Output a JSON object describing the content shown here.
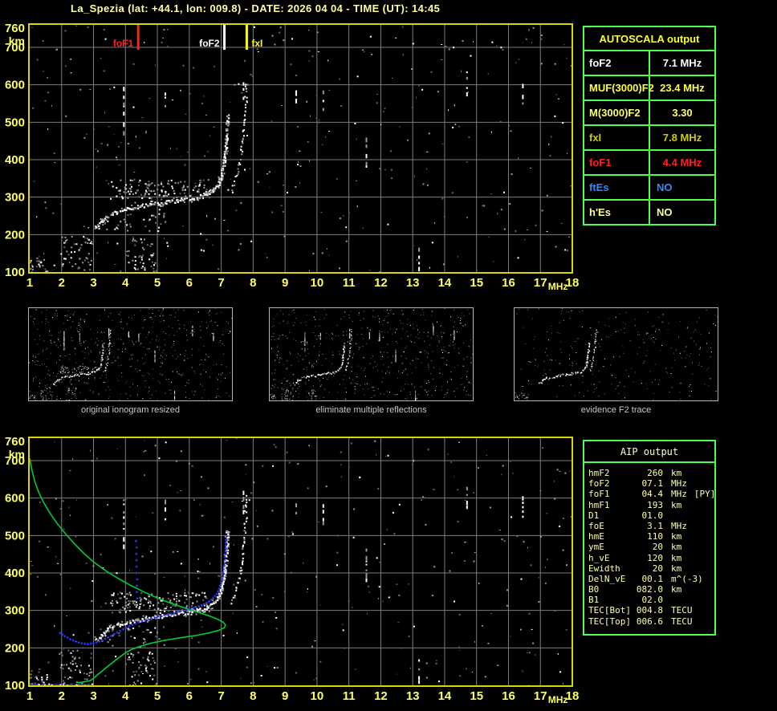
{
  "title": "La_Spezia (lat: +44.1, lon: 009.8) - DATE: 2026 04 04 - TIME (UT): 14:45",
  "colors": {
    "background": "#000000",
    "title_text": "#ffffa0",
    "axis_text": "#ffff66",
    "plot_border": "#d8d800",
    "grid": "#7d7d7d",
    "table_border": "#4dff4d",
    "echo_white": "#ffffff",
    "echo_gray": "#9a9a9a",
    "echo_dim": "#686868",
    "profile_green": "#00cc33",
    "trace_blue": "#2a3bff",
    "caption_text": "#c8c8c8",
    "aip_text": "#ffffaa"
  },
  "autoscala_table": {
    "title": "AUTOSCALA output",
    "rows": [
      {
        "label": "foF2",
        "value": "7.1 MHz",
        "color": "#ffffff"
      },
      {
        "label": "MUF(3000)F2",
        "value": "23.4 MHz",
        "color": "#ffff33"
      },
      {
        "label": "M(3000)F2",
        "value": "3.30",
        "color": "#ffff66"
      },
      {
        "label": "fxI",
        "value": "7.8 MHz",
        "color": "#cccc00"
      },
      {
        "label": "foF1",
        "value": "4.4 MHz",
        "color": "#ff2020"
      },
      {
        "label": "ftEs",
        "value": "NO",
        "color": "#3388ff"
      },
      {
        "label": "h'Es",
        "value": "NO",
        "color": "#ffff99"
      }
    ]
  },
  "thumbnails": [
    {
      "caption": "original ionogram resized"
    },
    {
      "caption": "eliminate multiple reflections"
    },
    {
      "caption": "evidence F2 trace"
    }
  ],
  "aip_table": {
    "title": "AIP output",
    "rows": [
      {
        "label": "hmF2",
        "value": "260",
        "unit": "km",
        "suffix": ""
      },
      {
        "label": "foF2",
        "value": "07.1",
        "unit": "MHz",
        "suffix": ""
      },
      {
        "label": "foF1",
        "value": "04.4",
        "unit": "MHz",
        "suffix": "[PY]"
      },
      {
        "label": "hmF1",
        "value": "193",
        "unit": "km",
        "suffix": ""
      },
      {
        "label": "D1",
        "value": "01.0",
        "unit": "",
        "suffix": ""
      },
      {
        "label": "foE",
        "value": "3.1",
        "unit": "MHz",
        "suffix": ""
      },
      {
        "label": "hmE",
        "value": "110",
        "unit": "km",
        "suffix": ""
      },
      {
        "label": "ymE",
        "value": "20",
        "unit": "km",
        "suffix": ""
      },
      {
        "label": "h_vE",
        "value": "120",
        "unit": "km",
        "suffix": ""
      },
      {
        "label": "Ewidth",
        "value": "20",
        "unit": "km",
        "suffix": ""
      },
      {
        "label": "DelN_vE",
        "value": "00.1",
        "unit": "m^(-3)",
        "suffix": ""
      },
      {
        "label": "B0",
        "value": "082.0",
        "unit": "km",
        "suffix": ""
      },
      {
        "label": "B1",
        "value": "02.0",
        "unit": "",
        "suffix": ""
      },
      {
        "label": "TEC[Bot]",
        "value": "004.8",
        "unit": "TECU",
        "suffix": ""
      },
      {
        "label": "TEC[Top]",
        "value": "006.6",
        "unit": "TECU",
        "suffix": ""
      }
    ]
  },
  "chart_data": [
    {
      "id": "top_ionogram",
      "type": "scatter",
      "title": "",
      "xlabel": "MHz",
      "ylabel": "km",
      "xlim": [
        1,
        18
      ],
      "ylim": [
        100,
        760
      ],
      "x_ticks": [
        1,
        2,
        3,
        4,
        5,
        6,
        7,
        8,
        9,
        10,
        11,
        12,
        13,
        14,
        15,
        16,
        17,
        18
      ],
      "y_ticks": [
        760,
        700,
        600,
        500,
        400,
        300,
        200,
        100
      ],
      "grid": true,
      "markers": [
        {
          "label": "foF1",
          "freq": 4.4,
          "color": "#ff2020",
          "side": "left"
        },
        {
          "label": "foF2",
          "freq": 7.1,
          "color": "#ffffff",
          "side": "left"
        },
        {
          "label": "fxI",
          "freq": 7.8,
          "color": "#ffff00",
          "side": "right"
        }
      ],
      "f2_trace": [
        [
          3.05,
          222
        ],
        [
          3.25,
          238
        ],
        [
          3.45,
          252
        ],
        [
          3.7,
          261
        ],
        [
          3.95,
          268
        ],
        [
          4.2,
          273
        ],
        [
          4.5,
          278
        ],
        [
          4.8,
          282
        ],
        [
          5.1,
          286
        ],
        [
          5.4,
          290
        ],
        [
          5.7,
          294
        ],
        [
          6.0,
          298
        ],
        [
          6.3,
          303
        ],
        [
          6.55,
          310
        ],
        [
          6.72,
          318
        ],
        [
          6.85,
          330
        ],
        [
          6.95,
          348
        ],
        [
          7.02,
          372
        ],
        [
          7.08,
          400
        ],
        [
          7.12,
          432
        ],
        [
          7.15,
          465
        ],
        [
          7.17,
          500
        ],
        [
          7.18,
          520
        ]
      ],
      "x_trace": [
        [
          7.3,
          318
        ],
        [
          7.42,
          345
        ],
        [
          7.52,
          378
        ],
        [
          7.6,
          412
        ],
        [
          7.66,
          450
        ],
        [
          7.71,
          492
        ],
        [
          7.74,
          535
        ],
        [
          7.76,
          580
        ],
        [
          7.77,
          615
        ]
      ],
      "multiples_region": {
        "freq": [
          3.5,
          6.65
        ],
        "km": [
          296,
          350
        ],
        "count": 140
      },
      "below_region": {
        "freq": [
          3.2,
          5.3
        ],
        "km": [
          204,
          258
        ],
        "count": 35
      },
      "low_clusters": [
        {
          "freq": [
            1.95,
            2.95
          ],
          "km": [
            103,
            198
          ],
          "count": 50
        },
        {
          "freq": [
            4.05,
            4.95
          ],
          "km": [
            100,
            192
          ],
          "count": 45
        },
        {
          "freq": [
            1.0,
            1.55
          ],
          "km": [
            100,
            145
          ],
          "count": 25
        }
      ],
      "rfi_streaks": [
        [
          3.95,
          468,
          592
        ],
        [
          5.25,
          538,
          590
        ],
        [
          7.7,
          560,
          622
        ],
        [
          9.35,
          555,
          592
        ],
        [
          10.2,
          530,
          592
        ],
        [
          11.55,
          378,
          462
        ],
        [
          13.2,
          106,
          168
        ],
        [
          14.7,
          572,
          628
        ],
        [
          16.45,
          545,
          600
        ]
      ],
      "noise_count": 360
    },
    {
      "id": "bottom_profile_plot",
      "type": "line",
      "title": "",
      "xlabel": "MHz",
      "ylabel": "km",
      "xlim": [
        1,
        18
      ],
      "ylim": [
        100,
        760
      ],
      "x_ticks": [
        1,
        2,
        3,
        4,
        5,
        6,
        7,
        8,
        9,
        10,
        11,
        12,
        13,
        14,
        15,
        16,
        17,
        18
      ],
      "y_ticks": [
        760,
        700,
        600,
        500,
        400,
        300,
        200,
        100
      ],
      "grid": true,
      "green_profile": [
        [
          1.0,
          706
        ],
        [
          1.07,
          674
        ],
        [
          1.16,
          644
        ],
        [
          1.28,
          616
        ],
        [
          1.44,
          588
        ],
        [
          1.63,
          560
        ],
        [
          1.86,
          532
        ],
        [
          2.12,
          505
        ],
        [
          2.4,
          478
        ],
        [
          2.7,
          452
        ],
        [
          3.02,
          428
        ],
        [
          3.38,
          406
        ],
        [
          3.76,
          386
        ],
        [
          4.16,
          367
        ],
        [
          4.56,
          350
        ],
        [
          4.95,
          335
        ],
        [
          5.33,
          322
        ],
        [
          5.7,
          311
        ],
        [
          6.05,
          301
        ],
        [
          6.38,
          292
        ],
        [
          6.67,
          284
        ],
        [
          6.9,
          276
        ],
        [
          7.05,
          269
        ],
        [
          7.13,
          262
        ],
        [
          7.1,
          254
        ],
        [
          6.93,
          247
        ],
        [
          6.62,
          240
        ],
        [
          6.2,
          233
        ],
        [
          5.72,
          227
        ],
        [
          5.22,
          220
        ],
        [
          4.78,
          212
        ],
        [
          4.45,
          204
        ],
        [
          4.2,
          196
        ],
        [
          4.02,
          188
        ],
        [
          3.86,
          178
        ],
        [
          3.7,
          168
        ],
        [
          3.54,
          157
        ],
        [
          3.38,
          146
        ],
        [
          3.24,
          136
        ],
        [
          3.12,
          128
        ],
        [
          3.03,
          121
        ],
        [
          2.96,
          116
        ],
        [
          2.88,
          112
        ],
        [
          2.76,
          110
        ],
        [
          2.6,
          108
        ],
        [
          2.45,
          107
        ]
      ],
      "blue_trace": [
        [
          1.95,
          240
        ],
        [
          2.1,
          231
        ],
        [
          2.27,
          223
        ],
        [
          2.45,
          217
        ],
        [
          2.63,
          212
        ],
        [
          2.82,
          210
        ],
        [
          3.0,
          212
        ],
        [
          3.18,
          217
        ],
        [
          3.36,
          224
        ],
        [
          3.55,
          232
        ],
        [
          3.74,
          241
        ],
        [
          3.93,
          250
        ],
        [
          4.12,
          258
        ],
        [
          4.32,
          265
        ],
        [
          4.52,
          271
        ],
        [
          4.72,
          276
        ],
        [
          4.92,
          281
        ],
        [
          5.12,
          285
        ],
        [
          5.32,
          289
        ],
        [
          5.52,
          293
        ],
        [
          5.72,
          297
        ],
        [
          5.92,
          301
        ],
        [
          6.12,
          306
        ],
        [
          6.3,
          311
        ],
        [
          6.47,
          317
        ],
        [
          6.62,
          324
        ],
        [
          6.75,
          333
        ],
        [
          6.86,
          344
        ],
        [
          6.94,
          358
        ],
        [
          7.0,
          375
        ],
        [
          7.05,
          395
        ],
        [
          7.09,
          418
        ],
        [
          7.12,
          442
        ],
        [
          7.14,
          466
        ],
        [
          7.15,
          488
        ],
        [
          7.16,
          505
        ]
      ],
      "blue_vertical": {
        "freq": 4.35,
        "km_list": [
          332,
          349,
          366,
          383,
          400,
          417,
          434,
          451,
          468,
          485
        ]
      },
      "blue_baseline": {
        "freq_range": [
          1.0,
          2.95
        ],
        "km": 103
      },
      "noise_count": 340
    }
  ]
}
